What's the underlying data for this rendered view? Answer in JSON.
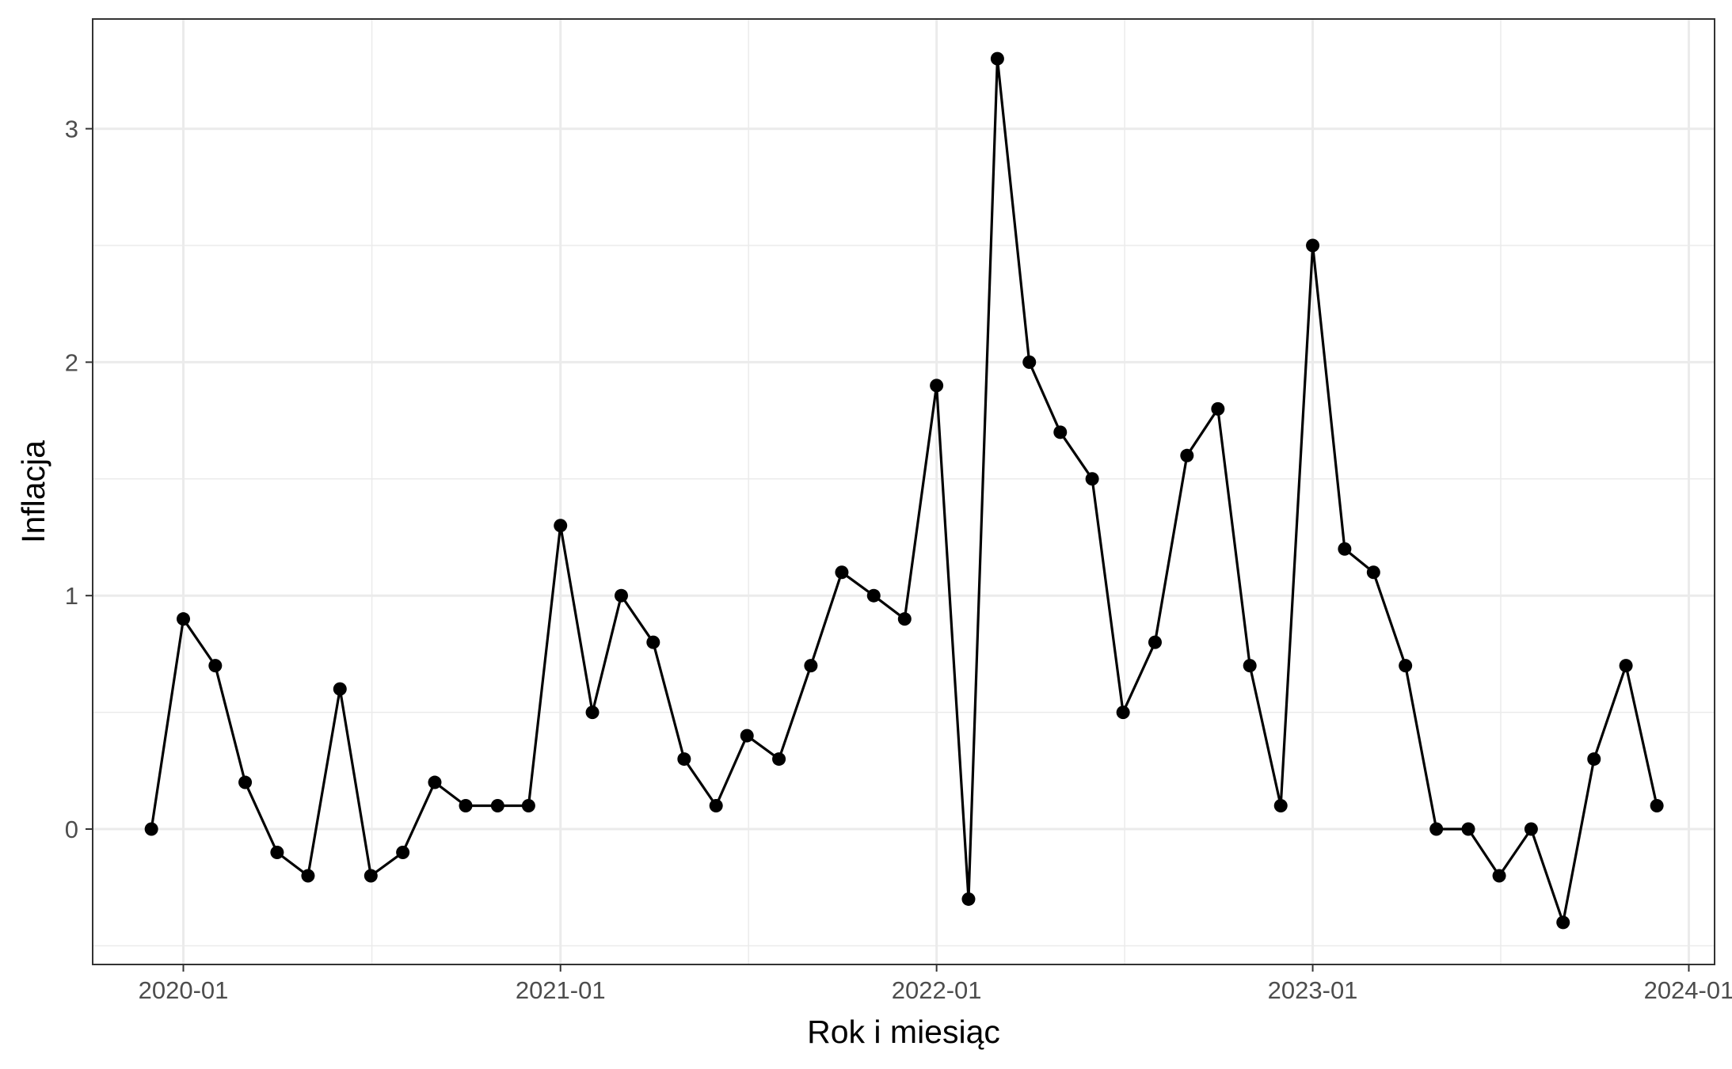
{
  "chart_data": {
    "type": "line",
    "title": "",
    "xlabel": "Rok i miesiąc",
    "ylabel": "Inflacja",
    "x_tick_labels": [
      "2020-01",
      "2021-01",
      "2022-01",
      "2023-01",
      "2024-01"
    ],
    "y_tick_labels": [
      "0",
      "1",
      "2",
      "3"
    ],
    "ylim": [
      -0.58,
      3.47
    ],
    "xlim": [
      "2019-10-05",
      "2024-01-26"
    ],
    "grid": true,
    "legend": "none",
    "series": [
      {
        "x": [
          "2019-12",
          "2020-01",
          "2020-02",
          "2020-03",
          "2020-04",
          "2020-05",
          "2020-06",
          "2020-07",
          "2020-08",
          "2020-09",
          "2020-10",
          "2020-11",
          "2020-12",
          "2021-01",
          "2021-02",
          "2021-03",
          "2021-04",
          "2021-05",
          "2021-06",
          "2021-07",
          "2021-08",
          "2021-09",
          "2021-10",
          "2021-11",
          "2021-12",
          "2022-01",
          "2022-02",
          "2022-03",
          "2022-04",
          "2022-05",
          "2022-06",
          "2022-07",
          "2022-08",
          "2022-09",
          "2022-10",
          "2022-11",
          "2022-12",
          "2023-01",
          "2023-02",
          "2023-03",
          "2023-04",
          "2023-05",
          "2023-06",
          "2023-07",
          "2023-08",
          "2023-09",
          "2023-10",
          "2023-11",
          "2023-12"
        ],
        "values": [
          0.0,
          0.9,
          0.7,
          0.2,
          -0.1,
          -0.2,
          0.6,
          -0.2,
          -0.1,
          0.2,
          0.1,
          0.1,
          0.1,
          1.3,
          0.5,
          1.0,
          0.8,
          0.3,
          0.1,
          0.4,
          0.3,
          0.7,
          1.1,
          1.0,
          0.9,
          1.9,
          -0.3,
          3.3,
          2.0,
          1.7,
          1.5,
          0.5,
          0.8,
          1.6,
          1.8,
          0.7,
          0.1,
          2.5,
          1.2,
          1.1,
          0.7,
          0.0,
          0.0,
          -0.2,
          0.0,
          -0.4,
          0.3,
          0.7,
          0.1
        ]
      }
    ],
    "colors": {
      "line": "#000000",
      "point": "#000000",
      "grid": "#ebebeb",
      "panel_border": "#333333"
    }
  }
}
